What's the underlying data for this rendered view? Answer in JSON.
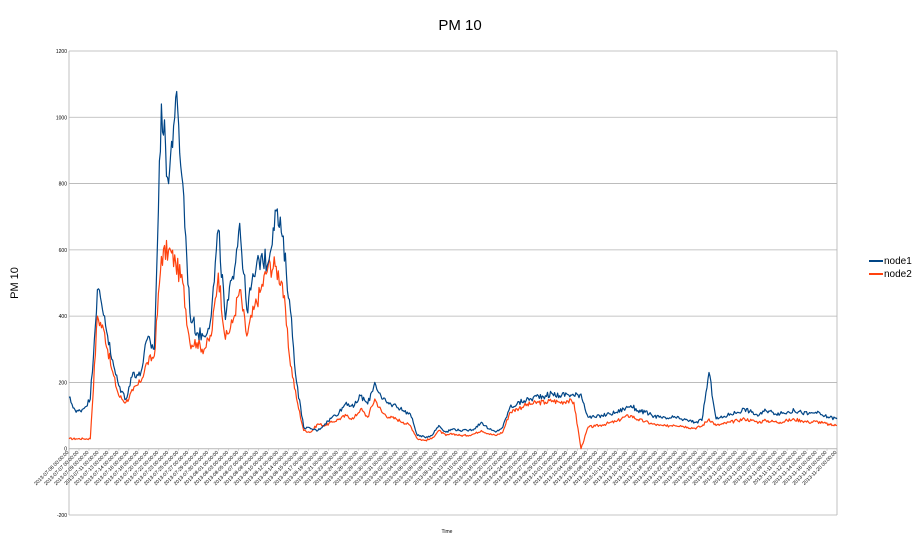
{
  "chart_data": {
    "type": "line",
    "title": "PM 10",
    "xlabel": "Time",
    "ylabel": "PM 10",
    "ylim": [
      -200,
      1200
    ],
    "yticks": [
      -200,
      0,
      200,
      400,
      600,
      800,
      1000,
      1200
    ],
    "grid": true,
    "legend_position": "right",
    "x_start": "2013-07-06",
    "x_end": "2013-11-20",
    "tick_format": "YYYY-MM-DD 00:00:00",
    "tick_count": 78,
    "series": [
      {
        "name": "node1",
        "color": "#004586",
        "keypoints": [
          [
            0,
            155
          ],
          [
            1,
            110
          ],
          [
            2,
            120
          ],
          [
            3,
            150
          ],
          [
            4,
            480
          ],
          [
            5,
            400
          ],
          [
            6,
            270
          ],
          [
            7,
            190
          ],
          [
            8,
            150
          ],
          [
            9,
            230
          ],
          [
            10,
            220
          ],
          [
            11,
            330
          ],
          [
            12,
            300
          ],
          [
            13,
            1040
          ],
          [
            14,
            800
          ],
          [
            15,
            1060
          ],
          [
            16,
            800
          ],
          [
            17,
            410
          ],
          [
            18,
            350
          ],
          [
            19,
            340
          ],
          [
            20,
            400
          ],
          [
            21,
            660
          ],
          [
            22,
            390
          ],
          [
            23,
            520
          ],
          [
            24,
            680
          ],
          [
            25,
            420
          ],
          [
            26,
            520
          ],
          [
            27,
            580
          ],
          [
            28,
            560
          ],
          [
            29,
            720
          ],
          [
            30,
            640
          ],
          [
            31,
            450
          ],
          [
            32,
            200
          ],
          [
            33,
            65
          ],
          [
            34,
            60
          ],
          [
            35,
            55
          ],
          [
            36,
            75
          ],
          [
            37,
            95
          ],
          [
            38,
            110
          ],
          [
            39,
            140
          ],
          [
            40,
            125
          ],
          [
            41,
            160
          ],
          [
            42,
            135
          ],
          [
            43,
            200
          ],
          [
            44,
            150
          ],
          [
            45,
            135
          ],
          [
            46,
            130
          ],
          [
            47,
            115
          ],
          [
            48,
            105
          ],
          [
            49,
            40
          ],
          [
            50,
            35
          ],
          [
            51,
            40
          ],
          [
            52,
            70
          ],
          [
            53,
            50
          ],
          [
            54,
            60
          ],
          [
            55,
            55
          ],
          [
            56,
            55
          ],
          [
            57,
            60
          ],
          [
            58,
            80
          ],
          [
            59,
            60
          ],
          [
            60,
            50
          ],
          [
            61,
            65
          ],
          [
            62,
            125
          ],
          [
            63,
            135
          ],
          [
            64,
            145
          ],
          [
            65,
            150
          ],
          [
            66,
            160
          ],
          [
            67,
            160
          ],
          [
            68,
            165
          ],
          [
            69,
            160
          ],
          [
            70,
            165
          ],
          [
            71,
            160
          ],
          [
            72,
            165
          ],
          [
            73,
            95
          ],
          [
            74,
            95
          ],
          [
            75,
            100
          ],
          [
            76,
            105
          ],
          [
            77,
            110
          ],
          [
            78,
            120
          ],
          [
            79,
            130
          ],
          [
            80,
            115
          ],
          [
            81,
            110
          ],
          [
            82,
            100
          ],
          [
            83,
            95
          ],
          [
            84,
            90
          ],
          [
            85,
            95
          ],
          [
            86,
            90
          ],
          [
            87,
            85
          ],
          [
            88,
            80
          ],
          [
            89,
            85
          ],
          [
            90,
            230
          ],
          [
            91,
            90
          ],
          [
            92,
            95
          ],
          [
            93,
            105
          ],
          [
            94,
            110
          ],
          [
            95,
            120
          ],
          [
            96,
            110
          ],
          [
            97,
            100
          ],
          [
            98,
            115
          ],
          [
            99,
            110
          ],
          [
            100,
            105
          ],
          [
            101,
            110
          ],
          [
            102,
            115
          ],
          [
            103,
            110
          ],
          [
            104,
            105
          ],
          [
            105,
            110
          ],
          [
            106,
            100
          ],
          [
            107,
            95
          ],
          [
            108,
            90
          ]
        ]
      },
      {
        "name": "node2",
        "color": "#ff420e",
        "keypoints": [
          [
            0,
            30
          ],
          [
            1,
            30
          ],
          [
            2,
            30
          ],
          [
            3,
            30
          ],
          [
            4,
            400
          ],
          [
            5,
            350
          ],
          [
            6,
            240
          ],
          [
            7,
            160
          ],
          [
            8,
            140
          ],
          [
            9,
            175
          ],
          [
            10,
            200
          ],
          [
            11,
            260
          ],
          [
            12,
            280
          ],
          [
            13,
            580
          ],
          [
            14,
            600
          ],
          [
            15,
            560
          ],
          [
            16,
            500
          ],
          [
            17,
            320
          ],
          [
            18,
            320
          ],
          [
            19,
            300
          ],
          [
            20,
            340
          ],
          [
            21,
            530
          ],
          [
            22,
            330
          ],
          [
            23,
            380
          ],
          [
            24,
            480
          ],
          [
            25,
            340
          ],
          [
            26,
            420
          ],
          [
            27,
            480
          ],
          [
            28,
            550
          ],
          [
            29,
            550
          ],
          [
            30,
            500
          ],
          [
            31,
            280
          ],
          [
            32,
            150
          ],
          [
            33,
            55
          ],
          [
            34,
            50
          ],
          [
            35,
            75
          ],
          [
            36,
            70
          ],
          [
            37,
            80
          ],
          [
            38,
            90
          ],
          [
            39,
            100
          ],
          [
            40,
            90
          ],
          [
            41,
            120
          ],
          [
            42,
            95
          ],
          [
            43,
            150
          ],
          [
            44,
            110
          ],
          [
            45,
            95
          ],
          [
            46,
            90
          ],
          [
            47,
            80
          ],
          [
            48,
            70
          ],
          [
            49,
            30
          ],
          [
            50,
            25
          ],
          [
            51,
            30
          ],
          [
            52,
            55
          ],
          [
            53,
            40
          ],
          [
            54,
            45
          ],
          [
            55,
            40
          ],
          [
            56,
            40
          ],
          [
            57,
            45
          ],
          [
            58,
            55
          ],
          [
            59,
            45
          ],
          [
            60,
            40
          ],
          [
            61,
            50
          ],
          [
            62,
            110
          ],
          [
            63,
            120
          ],
          [
            64,
            130
          ],
          [
            65,
            135
          ],
          [
            66,
            140
          ],
          [
            67,
            140
          ],
          [
            68,
            145
          ],
          [
            69,
            140
          ],
          [
            70,
            145
          ],
          [
            71,
            140
          ],
          [
            72,
            0
          ],
          [
            73,
            65
          ],
          [
            74,
            68
          ],
          [
            75,
            72
          ],
          [
            76,
            78
          ],
          [
            77,
            82
          ],
          [
            78,
            95
          ],
          [
            79,
            100
          ],
          [
            80,
            88
          ],
          [
            81,
            82
          ],
          [
            82,
            75
          ],
          [
            83,
            70
          ],
          [
            84,
            68
          ],
          [
            85,
            72
          ],
          [
            86,
            70
          ],
          [
            87,
            65
          ],
          [
            88,
            62
          ],
          [
            89,
            68
          ],
          [
            90,
            90
          ],
          [
            91,
            70
          ],
          [
            92,
            75
          ],
          [
            93,
            80
          ],
          [
            94,
            85
          ],
          [
            95,
            90
          ],
          [
            96,
            85
          ],
          [
            97,
            80
          ],
          [
            98,
            85
          ],
          [
            99,
            82
          ],
          [
            100,
            80
          ],
          [
            101,
            85
          ],
          [
            102,
            88
          ],
          [
            103,
            85
          ],
          [
            104,
            80
          ],
          [
            105,
            82
          ],
          [
            106,
            78
          ],
          [
            107,
            72
          ],
          [
            108,
            70
          ]
        ]
      }
    ]
  }
}
